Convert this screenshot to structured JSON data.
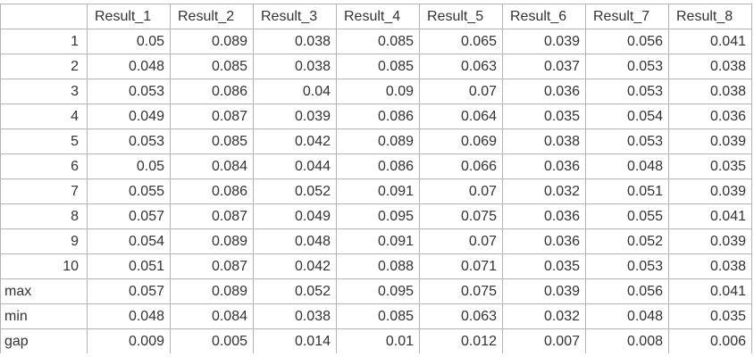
{
  "colors": {
    "grid": "#b4b4b4",
    "text": "#333333",
    "background": "#ffffff"
  },
  "table": {
    "corner_label": "",
    "columns": [
      "Result_1",
      "Result_2",
      "Result_3",
      "Result_4",
      "Result_5",
      "Result_6",
      "Result_7",
      "Result_8"
    ],
    "rows": [
      {
        "label": "1",
        "values": [
          "0.05",
          "0.089",
          "0.038",
          "0.085",
          "0.065",
          "0.039",
          "0.056",
          "0.041"
        ]
      },
      {
        "label": "2",
        "values": [
          "0.048",
          "0.085",
          "0.038",
          "0.085",
          "0.063",
          "0.037",
          "0.053",
          "0.038"
        ]
      },
      {
        "label": "3",
        "values": [
          "0.053",
          "0.086",
          "0.04",
          "0.09",
          "0.07",
          "0.036",
          "0.053",
          "0.038"
        ]
      },
      {
        "label": "4",
        "values": [
          "0.049",
          "0.087",
          "0.039",
          "0.086",
          "0.064",
          "0.035",
          "0.054",
          "0.036"
        ]
      },
      {
        "label": "5",
        "values": [
          "0.053",
          "0.085",
          "0.042",
          "0.089",
          "0.069",
          "0.038",
          "0.053",
          "0.039"
        ]
      },
      {
        "label": "6",
        "values": [
          "0.05",
          "0.084",
          "0.044",
          "0.086",
          "0.066",
          "0.036",
          "0.048",
          "0.035"
        ]
      },
      {
        "label": "7",
        "values": [
          "0.055",
          "0.086",
          "0.052",
          "0.091",
          "0.07",
          "0.032",
          "0.051",
          "0.039"
        ]
      },
      {
        "label": "8",
        "values": [
          "0.057",
          "0.087",
          "0.049",
          "0.095",
          "0.075",
          "0.036",
          "0.055",
          "0.041"
        ]
      },
      {
        "label": "9",
        "values": [
          "0.054",
          "0.089",
          "0.048",
          "0.091",
          "0.07",
          "0.036",
          "0.052",
          "0.039"
        ]
      },
      {
        "label": "10",
        "values": [
          "0.051",
          "0.087",
          "0.042",
          "0.088",
          "0.071",
          "0.035",
          "0.053",
          "0.038"
        ]
      },
      {
        "label": "max",
        "values": [
          "0.057",
          "0.089",
          "0.052",
          "0.095",
          "0.075",
          "0.039",
          "0.056",
          "0.041"
        ]
      },
      {
        "label": "min",
        "values": [
          "0.048",
          "0.084",
          "0.038",
          "0.085",
          "0.063",
          "0.032",
          "0.048",
          "0.035"
        ]
      },
      {
        "label": "gap",
        "values": [
          "0.009",
          "0.005",
          "0.014",
          "0.01",
          "0.012",
          "0.007",
          "0.008",
          "0.006"
        ]
      }
    ]
  }
}
